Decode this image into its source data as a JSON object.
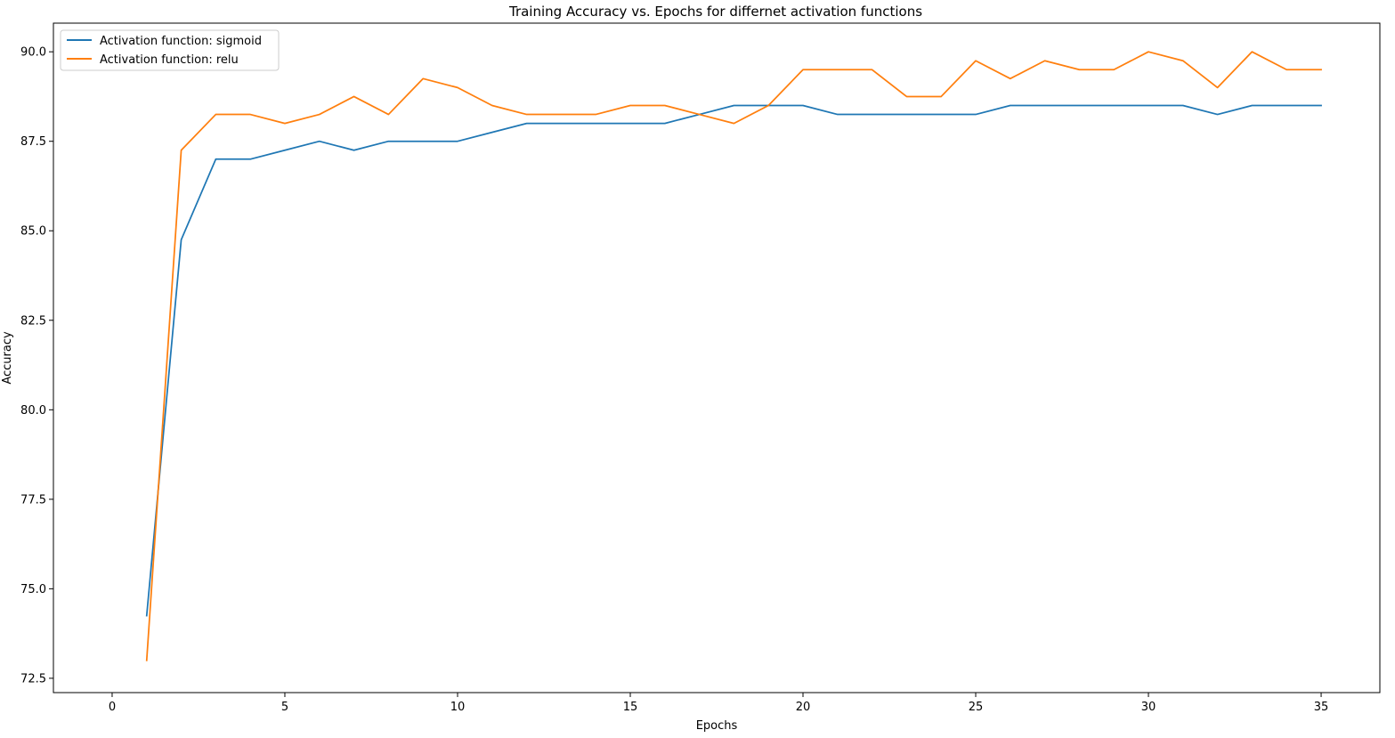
{
  "chart_data": {
    "type": "line",
    "title": "Training Accuracy vs. Epochs for differnet activation functions",
    "xlabel": "Epochs",
    "ylabel": "Accuracy",
    "xlim": [
      -1.7,
      36.7
    ],
    "ylim": [
      72.1,
      90.8
    ],
    "xticks": [
      0,
      5,
      10,
      15,
      20,
      25,
      30,
      35
    ],
    "xtick_labels": [
      "0",
      "5",
      "10",
      "15",
      "20",
      "25",
      "30",
      "35"
    ],
    "yticks": [
      72.5,
      75.0,
      77.5,
      80.0,
      82.5,
      85.0,
      87.5,
      90.0
    ],
    "ytick_labels": [
      "72.5",
      "75.0",
      "77.5",
      "80.0",
      "82.5",
      "85.0",
      "87.5",
      "90.0"
    ],
    "grid": false,
    "legend_position": "upper-left",
    "x": [
      1,
      2,
      3,
      4,
      5,
      6,
      7,
      8,
      9,
      10,
      11,
      12,
      13,
      14,
      15,
      16,
      17,
      18,
      19,
      20,
      21,
      22,
      23,
      24,
      25,
      26,
      27,
      28,
      29,
      30,
      31,
      32,
      33,
      34,
      35
    ],
    "series": [
      {
        "name": "Activation function: sigmoid",
        "color": "#1f77b4",
        "values": [
          74.25,
          84.75,
          87.0,
          87.0,
          87.25,
          87.5,
          87.25,
          87.5,
          87.5,
          87.5,
          87.75,
          88.0,
          88.0,
          88.0,
          88.0,
          88.0,
          88.25,
          88.5,
          88.5,
          88.5,
          88.25,
          88.25,
          88.25,
          88.25,
          88.25,
          88.5,
          88.5,
          88.5,
          88.5,
          88.5,
          88.5,
          88.25,
          88.5,
          88.5,
          88.5
        ]
      },
      {
        "name": "Activation function: relu",
        "color": "#ff7f0e",
        "values": [
          73.0,
          87.25,
          88.25,
          88.25,
          88.0,
          88.25,
          88.75,
          88.25,
          89.25,
          89.0,
          88.5,
          88.25,
          88.25,
          88.25,
          88.5,
          88.5,
          88.25,
          88.0,
          88.5,
          89.5,
          89.5,
          89.5,
          88.75,
          88.75,
          89.75,
          89.25,
          89.75,
          89.5,
          89.5,
          90.0,
          89.75,
          89.0,
          90.0,
          89.5,
          89.5
        ]
      }
    ]
  }
}
